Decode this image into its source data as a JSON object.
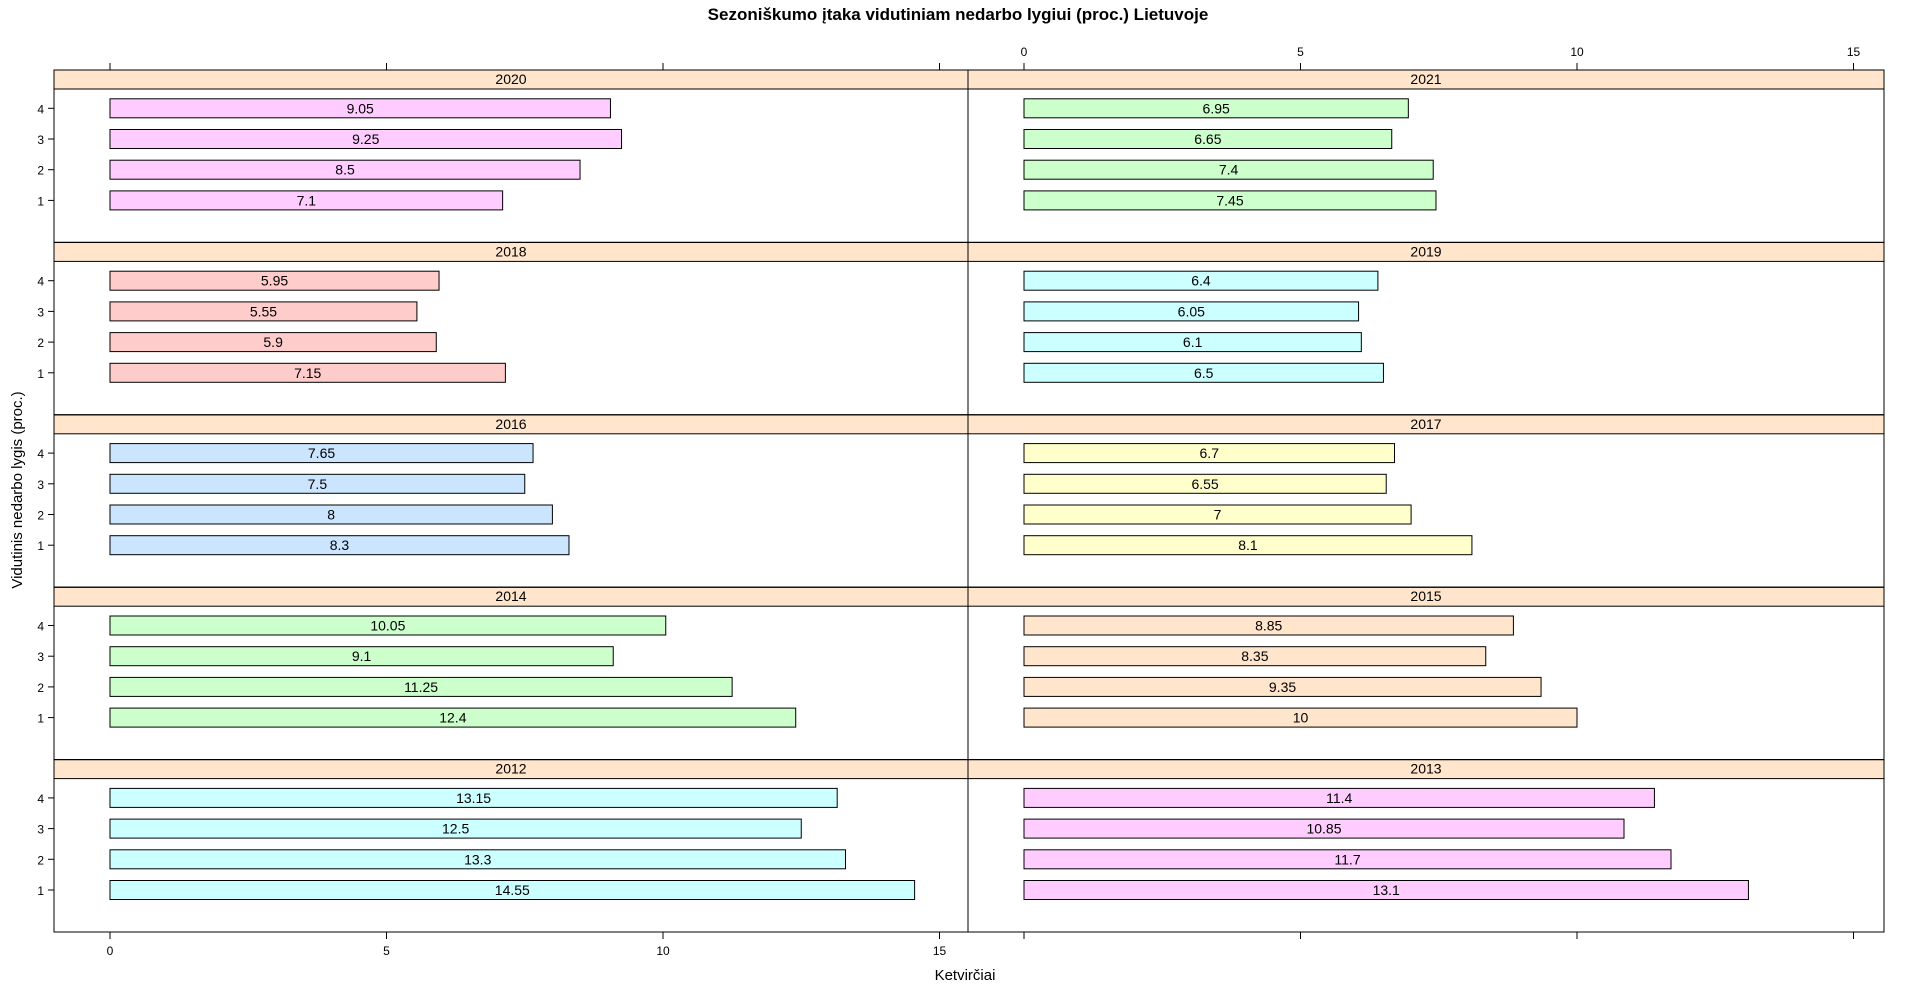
{
  "chart_data": {
    "type": "bar",
    "orientation": "horizontal",
    "title": "Sezoniškumo įtaka vidutiniam nedarbo lygiui (proc.) Lietuvoje",
    "xlabel": "Ketvirčiai",
    "ylabel": "Vidutinis nedarbo lygis (proc.)",
    "xlim": [
      0,
      15
    ],
    "x_ticks": [
      0,
      5,
      10,
      15
    ],
    "categories": [
      "1",
      "2",
      "3",
      "4"
    ],
    "strip_color": "#ffe5cc",
    "panels": [
      {
        "label": "2012",
        "values": [
          14.55,
          13.3,
          12.5,
          13.15
        ],
        "color": "#ccffff"
      },
      {
        "label": "2013",
        "values": [
          13.1,
          11.7,
          10.85,
          11.4
        ],
        "color": "#ffccff"
      },
      {
        "label": "2014",
        "values": [
          12.4,
          11.25,
          9.1,
          10.05
        ],
        "color": "#ccffcc"
      },
      {
        "label": "2015",
        "values": [
          10,
          9.35,
          8.35,
          8.85
        ],
        "color": "#ffe5cc"
      },
      {
        "label": "2016",
        "values": [
          8.3,
          8,
          7.5,
          7.65
        ],
        "color": "#cce5ff"
      },
      {
        "label": "2017",
        "values": [
          8.1,
          7,
          6.55,
          6.7
        ],
        "color": "#ffffcc"
      },
      {
        "label": "2018",
        "values": [
          7.15,
          5.9,
          5.55,
          5.95
        ],
        "color": "#ffcccc"
      },
      {
        "label": "2019",
        "values": [
          6.5,
          6.1,
          6.05,
          6.4
        ],
        "color": "#ccffff"
      },
      {
        "label": "2020",
        "values": [
          7.1,
          8.5,
          9.25,
          9.05
        ],
        "color": "#ffccff"
      },
      {
        "label": "2021",
        "values": [
          7.45,
          7.4,
          6.65,
          6.95
        ],
        "color": "#ccffcc"
      }
    ]
  }
}
